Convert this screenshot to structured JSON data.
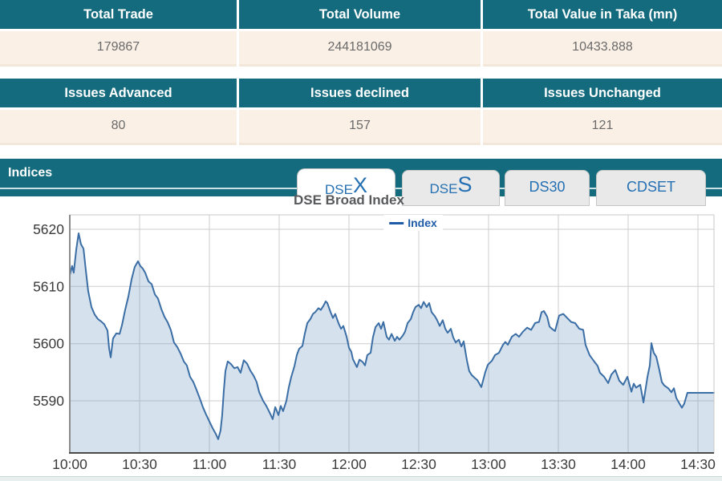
{
  "summary_table_1": {
    "headers": [
      "Total Trade",
      "Total Volume",
      "Total Value in Taka (mn)"
    ],
    "values": [
      "179867",
      "244181069",
      "10433.888"
    ]
  },
  "summary_table_2": {
    "headers": [
      "Issues Advanced",
      "Issues declined",
      "Issues Unchanged"
    ],
    "values": [
      "80",
      "157",
      "121"
    ]
  },
  "indices": {
    "bar_label": "Indices",
    "tabs": [
      {
        "small": "DSE",
        "big": "X",
        "active": true
      },
      {
        "small": "DSE",
        "big": "S",
        "active": false
      },
      {
        "label": "DS30",
        "active": false
      },
      {
        "label": "CDSET",
        "active": false
      }
    ]
  },
  "colors": {
    "teal": "#146b7d",
    "peach": "#fbf0e6",
    "tab_blue": "#2470b3",
    "legend_blue": "#1f5ca8",
    "line_blue": "#3a6ea5",
    "area_fill": "rgba(93,135,186,0.25)",
    "gridline": "#cdcdcd"
  },
  "chart_data": {
    "type": "area",
    "title": "DSE Broad Index",
    "legend": [
      "Index"
    ],
    "legend_position": "top-center",
    "grid": true,
    "x_ticks": [
      "10:00",
      "10:30",
      "11:00",
      "11:30",
      "12:00",
      "12:30",
      "13:00",
      "13:30",
      "14:00",
      "14:30"
    ],
    "x_tick_minutes": [
      0,
      30,
      60,
      90,
      120,
      150,
      180,
      210,
      240,
      270
    ],
    "y_ticks": [
      5590,
      5600,
      5610,
      5620
    ],
    "ylim": [
      5581,
      5622.5
    ],
    "xlim_minutes": [
      0,
      276.9
    ],
    "series": [
      {
        "name": "Index",
        "points": [
          [
            0,
            5612
          ],
          [
            1,
            5613.6
          ],
          [
            1.7,
            5612.4
          ],
          [
            2.8,
            5616.5
          ],
          [
            3.8,
            5619.3
          ],
          [
            4.8,
            5617.4
          ],
          [
            5.9,
            5616.6
          ],
          [
            6.9,
            5612.8
          ],
          [
            7.9,
            5609.2
          ],
          [
            9.3,
            5606.4
          ],
          [
            10.7,
            5605.1
          ],
          [
            12.1,
            5604.3
          ],
          [
            13.4,
            5603.9
          ],
          [
            14.8,
            5603.4
          ],
          [
            16.2,
            5602.3
          ],
          [
            16.9,
            5599.2
          ],
          [
            17.6,
            5597.6
          ],
          [
            18.6,
            5600.9
          ],
          [
            20,
            5601.8
          ],
          [
            21.4,
            5601.7
          ],
          [
            22.4,
            5603.2
          ],
          [
            23.8,
            5605.9
          ],
          [
            25.2,
            5608.3
          ],
          [
            26.6,
            5611.3
          ],
          [
            27.9,
            5613.4
          ],
          [
            29.3,
            5614.4
          ],
          [
            30.3,
            5613.6
          ],
          [
            31.4,
            5613.1
          ],
          [
            32.4,
            5612.4
          ],
          [
            33.8,
            5610.9
          ],
          [
            35.2,
            5610.4
          ],
          [
            36.6,
            5608.6
          ],
          [
            37.9,
            5607.9
          ],
          [
            39.3,
            5606.1
          ],
          [
            40.7,
            5604.7
          ],
          [
            42.1,
            5603.7
          ],
          [
            43.4,
            5602.4
          ],
          [
            44.8,
            5600.2
          ],
          [
            46.2,
            5599.4
          ],
          [
            47.6,
            5598.3
          ],
          [
            49,
            5596.9
          ],
          [
            50.3,
            5596.2
          ],
          [
            51.7,
            5594.2
          ],
          [
            53.1,
            5593.3
          ],
          [
            54.5,
            5591.9
          ],
          [
            55.9,
            5590.4
          ],
          [
            57.2,
            5588.9
          ],
          [
            58.6,
            5587.6
          ],
          [
            60,
            5586.4
          ],
          [
            61.4,
            5585.2
          ],
          [
            62.8,
            5584.2
          ],
          [
            63.8,
            5583.3
          ],
          [
            64.8,
            5584.8
          ],
          [
            65.5,
            5587.4
          ],
          [
            66.2,
            5591.8
          ],
          [
            66.9,
            5595.2
          ],
          [
            67.9,
            5596.9
          ],
          [
            69.3,
            5596.4
          ],
          [
            70.7,
            5595.7
          ],
          [
            72.1,
            5595.9
          ],
          [
            73.4,
            5594.9
          ],
          [
            74.8,
            5597.1
          ],
          [
            76.2,
            5596.5
          ],
          [
            77.6,
            5595.3
          ],
          [
            79,
            5594.4
          ],
          [
            80.3,
            5593.3
          ],
          [
            81.4,
            5591.5
          ],
          [
            83.1,
            5590
          ],
          [
            84.5,
            5589.1
          ],
          [
            86.2,
            5587.7
          ],
          [
            87.2,
            5586.8
          ],
          [
            88.3,
            5588.9
          ],
          [
            89.7,
            5587.5
          ],
          [
            90.7,
            5589.1
          ],
          [
            91.7,
            5588.2
          ],
          [
            93.1,
            5590
          ],
          [
            94.1,
            5592.3
          ],
          [
            95.2,
            5594.2
          ],
          [
            96.6,
            5596.1
          ],
          [
            97.6,
            5598
          ],
          [
            98.6,
            5599.1
          ],
          [
            100,
            5599.6
          ],
          [
            101,
            5601.7
          ],
          [
            102.1,
            5603.6
          ],
          [
            103.4,
            5604.3
          ],
          [
            104.5,
            5605.2
          ],
          [
            105.5,
            5605.5
          ],
          [
            106.9,
            5606.2
          ],
          [
            107.9,
            5605.9
          ],
          [
            109,
            5606.6
          ],
          [
            110,
            5607.4
          ],
          [
            110.7,
            5607.1
          ],
          [
            112.1,
            5605.5
          ],
          [
            113.1,
            5604.5
          ],
          [
            114.1,
            5605.2
          ],
          [
            115.5,
            5603.6
          ],
          [
            116.6,
            5602.6
          ],
          [
            117.6,
            5603.1
          ],
          [
            119,
            5601.2
          ],
          [
            120,
            5599.3
          ],
          [
            121,
            5598.6
          ],
          [
            121.7,
            5597.3
          ],
          [
            123.4,
            5595.9
          ],
          [
            124.5,
            5597.2
          ],
          [
            125.9,
            5596.8
          ],
          [
            126.9,
            5596.2
          ],
          [
            127.9,
            5598
          ],
          [
            129.3,
            5598.4
          ],
          [
            130.3,
            5601.1
          ],
          [
            131.4,
            5602.9
          ],
          [
            132.8,
            5603.6
          ],
          [
            133.8,
            5602.6
          ],
          [
            134.8,
            5603.8
          ],
          [
            136.2,
            5601.2
          ],
          [
            137.2,
            5600.7
          ],
          [
            138.3,
            5601.7
          ],
          [
            139.7,
            5600.5
          ],
          [
            140.7,
            5601.2
          ],
          [
            141.7,
            5600.7
          ],
          [
            143.1,
            5601.4
          ],
          [
            144.1,
            5602.1
          ],
          [
            145.2,
            5603.6
          ],
          [
            146.6,
            5604.3
          ],
          [
            147.6,
            5605.5
          ],
          [
            148.6,
            5606.4
          ],
          [
            150,
            5606.8
          ],
          [
            151,
            5606.2
          ],
          [
            152.1,
            5607.3
          ],
          [
            153.4,
            5606.4
          ],
          [
            154.5,
            5607.1
          ],
          [
            155.5,
            5605.5
          ],
          [
            156.9,
            5604.8
          ],
          [
            157.9,
            5604.1
          ],
          [
            159,
            5603.1
          ],
          [
            160.3,
            5604.1
          ],
          [
            161.4,
            5602.6
          ],
          [
            162.4,
            5601.9
          ],
          [
            163.8,
            5602.6
          ],
          [
            164.8,
            5601.1
          ],
          [
            165.9,
            5600.2
          ],
          [
            167.2,
            5600.7
          ],
          [
            168.3,
            5599.5
          ],
          [
            169.3,
            5600.4
          ],
          [
            170.7,
            5597.1
          ],
          [
            171.7,
            5595.2
          ],
          [
            172.8,
            5594.5
          ],
          [
            174.1,
            5594
          ],
          [
            175.2,
            5593.6
          ],
          [
            176.9,
            5592.4
          ],
          [
            178.6,
            5595
          ],
          [
            179.7,
            5596.3
          ],
          [
            181.4,
            5597
          ],
          [
            182.8,
            5598
          ],
          [
            184.5,
            5598.4
          ],
          [
            186.2,
            5599.8
          ],
          [
            187.2,
            5600.3
          ],
          [
            188.3,
            5599.8
          ],
          [
            190,
            5601.2
          ],
          [
            191.7,
            5601.7
          ],
          [
            193.1,
            5601.2
          ],
          [
            194.8,
            5602.1
          ],
          [
            196.6,
            5602.8
          ],
          [
            198.3,
            5602.4
          ],
          [
            200,
            5603.6
          ],
          [
            201.7,
            5603.8
          ],
          [
            202.8,
            5605.5
          ],
          [
            203.8,
            5605.7
          ],
          [
            205.2,
            5604.7
          ],
          [
            206.2,
            5603
          ],
          [
            207.2,
            5602.6
          ],
          [
            208.6,
            5602.2
          ],
          [
            210.3,
            5604.9
          ],
          [
            212.1,
            5605.2
          ],
          [
            213.8,
            5604.5
          ],
          [
            215.5,
            5603.8
          ],
          [
            217.2,
            5603.6
          ],
          [
            219,
            5602.6
          ],
          [
            220.7,
            5602.4
          ],
          [
            221.7,
            5599.8
          ],
          [
            223.4,
            5598
          ],
          [
            225.2,
            5597
          ],
          [
            226.9,
            5596.1
          ],
          [
            227.9,
            5594.9
          ],
          [
            229.7,
            5594.2
          ],
          [
            231.4,
            5593.1
          ],
          [
            232.8,
            5594.6
          ],
          [
            234.5,
            5595.4
          ],
          [
            236.2,
            5593.5
          ],
          [
            237.9,
            5592.8
          ],
          [
            239.7,
            5594.2
          ],
          [
            241.4,
            5591.6
          ],
          [
            242.4,
            5593
          ],
          [
            243.4,
            5592.3
          ],
          [
            245.2,
            5592.8
          ],
          [
            246.6,
            5589.7
          ],
          [
            248.3,
            5594.2
          ],
          [
            249.3,
            5596.2
          ],
          [
            250,
            5600.1
          ],
          [
            251,
            5598.4
          ],
          [
            252.1,
            5597.7
          ],
          [
            253.4,
            5595.4
          ],
          [
            254.5,
            5593.3
          ],
          [
            255.5,
            5592.7
          ],
          [
            257.2,
            5592.2
          ],
          [
            258.6,
            5591.5
          ],
          [
            259.7,
            5592.2
          ],
          [
            260.7,
            5590.5
          ],
          [
            262.1,
            5589.5
          ],
          [
            263.1,
            5588.8
          ],
          [
            264.1,
            5589.5
          ],
          [
            265.5,
            5591.4
          ],
          [
            267.2,
            5591.4
          ],
          [
            270,
            5591.4
          ],
          [
            273.4,
            5591.4
          ],
          [
            276.9,
            5591.4
          ]
        ]
      }
    ]
  }
}
